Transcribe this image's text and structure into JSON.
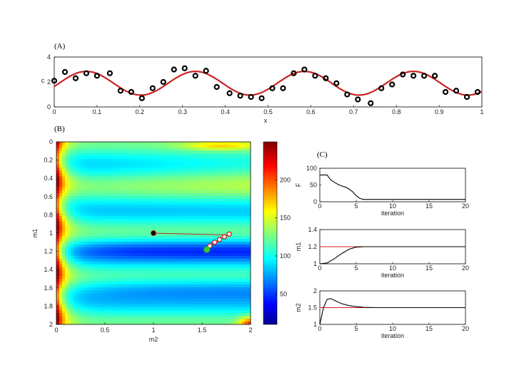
{
  "panels": {
    "a": "(A)",
    "b": "(B)",
    "c": "(C)"
  },
  "chart_data": [
    {
      "id": "A",
      "type": "scatter",
      "xlabel": "x",
      "ylabel": "c",
      "xlim": [
        0,
        1
      ],
      "ylim": [
        0,
        4
      ],
      "xticks": [
        "0",
        "0.1",
        "0.2",
        "0.3",
        "0.4",
        "0.5",
        "0.6",
        "0.7",
        "0.8",
        "0.9",
        "1"
      ],
      "yticks": [
        "0",
        "2",
        "4"
      ],
      "fit_line": {
        "color": "#cc2222",
        "mean": 1.9,
        "amplitude": 0.95,
        "period": 0.255,
        "phase_peak_x": 0.075
      },
      "points": {
        "x": [
          0.0,
          0.025,
          0.05,
          0.075,
          0.1,
          0.13,
          0.155,
          0.18,
          0.205,
          0.23,
          0.255,
          0.28,
          0.305,
          0.33,
          0.355,
          0.38,
          0.41,
          0.435,
          0.46,
          0.485,
          0.51,
          0.535,
          0.56,
          0.585,
          0.61,
          0.635,
          0.66,
          0.685,
          0.71,
          0.74,
          0.765,
          0.79,
          0.815,
          0.84,
          0.865,
          0.89,
          0.915,
          0.94,
          0.965,
          0.99
        ],
        "y": [
          2.1,
          2.8,
          2.3,
          2.7,
          2.5,
          2.7,
          1.3,
          1.2,
          0.7,
          1.5,
          2.0,
          3.0,
          3.1,
          2.5,
          2.9,
          1.6,
          1.1,
          0.9,
          0.8,
          0.7,
          1.5,
          1.5,
          2.7,
          3.0,
          2.5,
          2.3,
          1.9,
          1.0,
          0.6,
          0.3,
          1.5,
          1.8,
          2.6,
          2.5,
          2.5,
          2.5,
          1.2,
          1.3,
          0.8,
          1.2
        ]
      }
    },
    {
      "id": "B",
      "type": "heatmap",
      "xlabel": "m2",
      "ylabel": "m1",
      "xlim": [
        0,
        2
      ],
      "ylim": [
        0,
        2
      ],
      "xticks": [
        "0",
        "0.5",
        "1",
        "1.5",
        "2"
      ],
      "yticks": [
        "0",
        "0.2",
        "0.4",
        "0.6",
        "0.8",
        "1",
        "1.2",
        "1.4",
        "1.6",
        "1.8",
        "2"
      ],
      "colorbar": {
        "ticks": [
          "50",
          "100",
          "150",
          "200"
        ],
        "range": [
          10,
          250
        ]
      },
      "path_black": {
        "m2": [
          1.0,
          1.75
        ],
        "m1": [
          1.0,
          1.02
        ],
        "start_color": "#000000"
      },
      "path_red": {
        "m2": [
          1.78,
          1.73,
          1.68,
          1.63,
          1.58,
          1.55
        ],
        "m1": [
          1.01,
          1.04,
          1.07,
          1.1,
          1.14,
          1.18
        ],
        "end_color": "#33cc33"
      }
    },
    {
      "id": "C1",
      "type": "line",
      "xlabel": "iteration",
      "ylabel": "F",
      "xlim": [
        0,
        20
      ],
      "ylim": [
        0,
        100
      ],
      "xticks": [
        "0",
        "5",
        "10",
        "15",
        "20"
      ],
      "yticks": [
        "0",
        "50",
        "100"
      ],
      "x": [
        0,
        1,
        1.5,
        2,
        2.5,
        3,
        3.5,
        4,
        4.5,
        5,
        5.5,
        6,
        8,
        10,
        15,
        20
      ],
      "y": [
        80,
        80,
        65,
        58,
        52,
        47,
        44,
        38,
        30,
        18,
        10,
        7,
        7,
        7,
        7,
        7
      ]
    },
    {
      "id": "C2",
      "type": "line",
      "xlabel": "iteration",
      "ylabel": "m1",
      "xlim": [
        0,
        20
      ],
      "ylim": [
        1,
        1.4
      ],
      "xticks": [
        "0",
        "5",
        "10",
        "15",
        "20"
      ],
      "yticks": [
        "1",
        "1.2",
        "1.4"
      ],
      "reference": 1.2,
      "reference_color": "#cc2222",
      "x": [
        0,
        1,
        2,
        3,
        4,
        5,
        6,
        8,
        10,
        15,
        20
      ],
      "y": [
        1.0,
        1.01,
        1.06,
        1.12,
        1.17,
        1.195,
        1.2,
        1.2,
        1.2,
        1.2,
        1.2
      ]
    },
    {
      "id": "C3",
      "type": "line",
      "xlabel": "iteration",
      "ylabel": "m2",
      "xlim": [
        0,
        20
      ],
      "ylim": [
        1,
        2
      ],
      "xticks": [
        "0",
        "5",
        "10",
        "15",
        "20"
      ],
      "yticks": [
        "1",
        "1.5",
        "2"
      ],
      "reference": 1.5,
      "reference_color": "#cc2222",
      "x": [
        0,
        0.5,
        1,
        1.5,
        2,
        3,
        4,
        5,
        6,
        8,
        10,
        15,
        20
      ],
      "y": [
        1.0,
        1.5,
        1.75,
        1.77,
        1.72,
        1.62,
        1.56,
        1.53,
        1.51,
        1.5,
        1.5,
        1.5,
        1.5
      ]
    }
  ]
}
